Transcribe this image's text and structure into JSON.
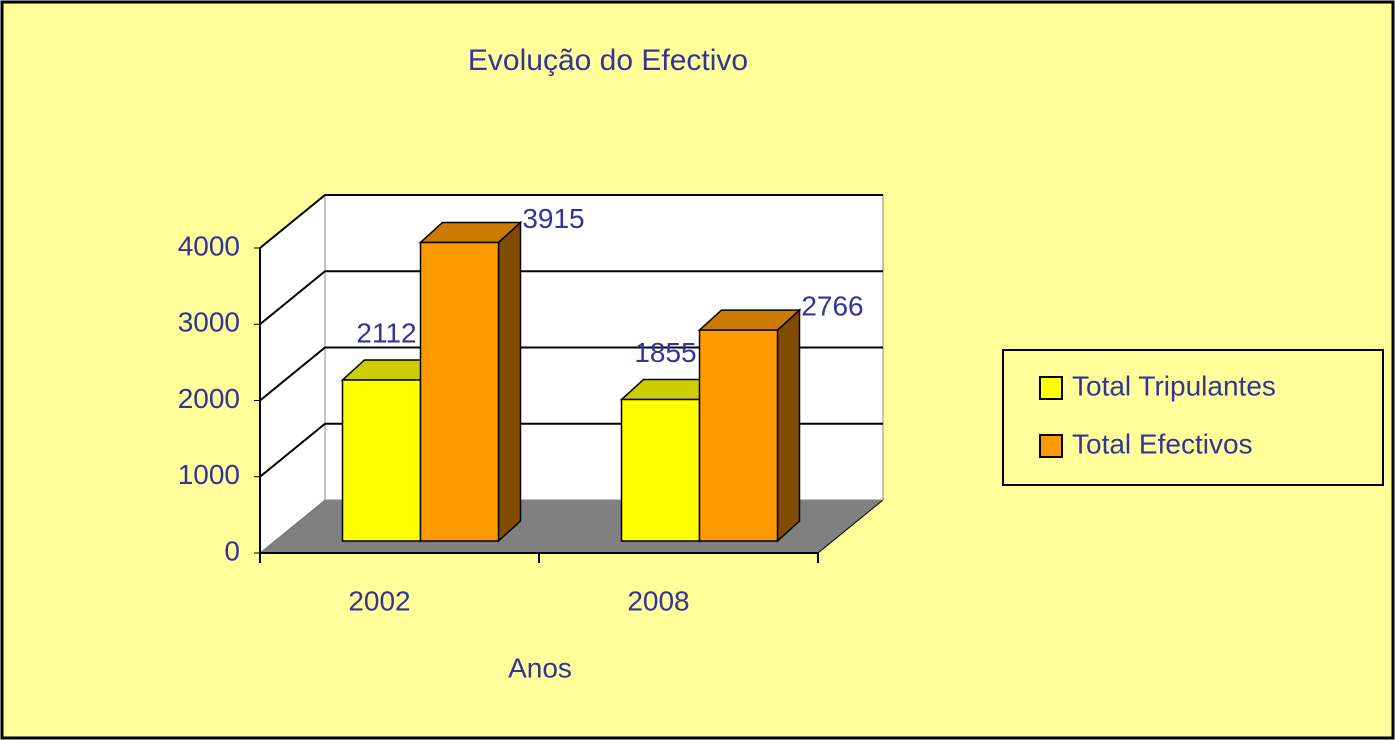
{
  "chart_data": {
    "type": "bar",
    "title": "Evolução do Efectivo",
    "x_label": "Anos",
    "categories": [
      "2002",
      "2008"
    ],
    "series": [
      {
        "name": "Total Tripulantes",
        "color": "#ffff00",
        "values": [
          2112,
          1855
        ]
      },
      {
        "name": "Total Efectivos",
        "color": "#ff9900",
        "values": [
          3915,
          2766
        ]
      }
    ],
    "ylim": [
      0,
      4000
    ],
    "yticks": [
      0,
      1000,
      2000,
      3000,
      4000
    ],
    "grid": true,
    "legend": "right",
    "data_labels": true
  }
}
